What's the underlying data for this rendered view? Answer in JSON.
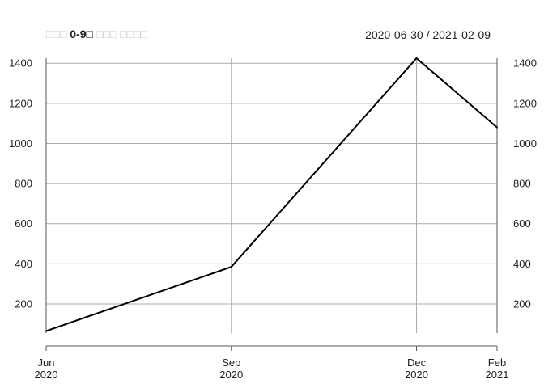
{
  "chart_data": {
    "type": "line",
    "title": "□□□ 0-9□ □□□ □□□□",
    "title_parts": {
      "prefix": "□□□ ",
      "bold": "0-9□",
      "suffix": " □□□ □□□□"
    },
    "date_range": "2020-06-30 / 2021-02-09",
    "x_ticks": [
      {
        "date": "2020-06-30",
        "month": "Jun",
        "year": "2020"
      },
      {
        "date": "2020-09-30",
        "month": "Sep",
        "year": "2020"
      },
      {
        "date": "2020-12-31",
        "month": "Dec",
        "year": "2020"
      },
      {
        "date": "2021-02-09",
        "month": "Feb",
        "year": "2021"
      }
    ],
    "y_ticks": [
      200,
      400,
      600,
      800,
      1000,
      1200,
      1400
    ],
    "ylim": [
      55,
      1425
    ],
    "grid": true,
    "series": [
      {
        "color": "#000000",
        "points": [
          {
            "x": "2020-06-30",
            "y": 65
          },
          {
            "x": "2020-09-30",
            "y": 385
          },
          {
            "x": "2020-12-31",
            "y": 1425
          },
          {
            "x": "2021-02-09",
            "y": 1080
          }
        ]
      }
    ],
    "colors": {
      "grid": "#aaaaaa",
      "line": "#000000",
      "axis": "#555555",
      "title_faint": "#cccccc"
    }
  }
}
